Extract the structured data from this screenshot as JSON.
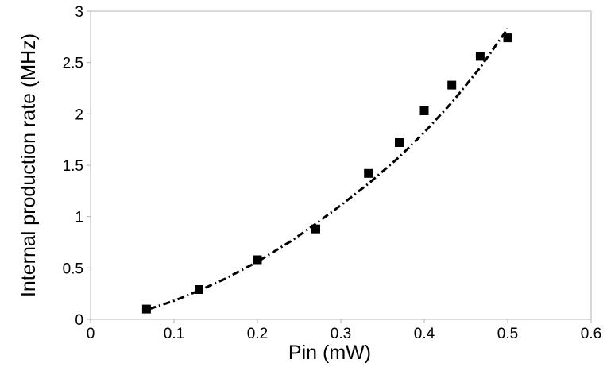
{
  "chart_data": {
    "type": "scatter",
    "title": "",
    "xlabel": "Pin (mW)",
    "ylabel": "Internal  production  rate  (MHz)",
    "xlim": [
      0,
      0.6
    ],
    "ylim": [
      0,
      3
    ],
    "xticks": [
      "0",
      "0.1",
      "0.2",
      "0.3",
      "0.4",
      "0.5",
      "0.6"
    ],
    "yticks": [
      "0",
      "0.5",
      "1",
      "1.5",
      "2",
      "2.5",
      "3"
    ],
    "grid": false,
    "legend": "none",
    "series": [
      {
        "marker": "square",
        "color": "#000000",
        "x": [
          0.067,
          0.13,
          0.2,
          0.27,
          0.333,
          0.37,
          0.4,
          0.433,
          0.467,
          0.5
        ],
        "y": [
          0.1,
          0.29,
          0.58,
          0.88,
          1.42,
          1.72,
          2.03,
          2.28,
          2.56,
          2.74
        ]
      }
    ],
    "fit": {
      "style": "dash-dot",
      "color": "#000000",
      "x": [
        0.07,
        0.1,
        0.13,
        0.16,
        0.2,
        0.24,
        0.27,
        0.3,
        0.333,
        0.37,
        0.4,
        0.433,
        0.467,
        0.5
      ],
      "y": [
        0.1,
        0.18,
        0.28,
        0.39,
        0.56,
        0.76,
        0.93,
        1.11,
        1.32,
        1.58,
        1.82,
        2.11,
        2.45,
        2.83
      ]
    }
  }
}
